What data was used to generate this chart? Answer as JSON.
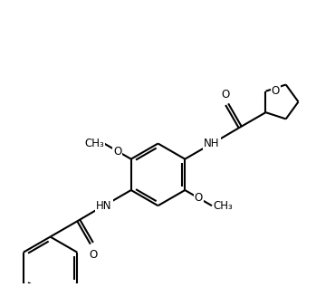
{
  "bg_color": "#ffffff",
  "line_color": "#000000",
  "line_width": 1.5,
  "font_size": 8.5,
  "fig_width": 3.49,
  "fig_height": 3.17,
  "dpi": 100,
  "xlim": [
    -1.5,
    8.5
  ],
  "ylim": [
    -3.5,
    5.5
  ]
}
